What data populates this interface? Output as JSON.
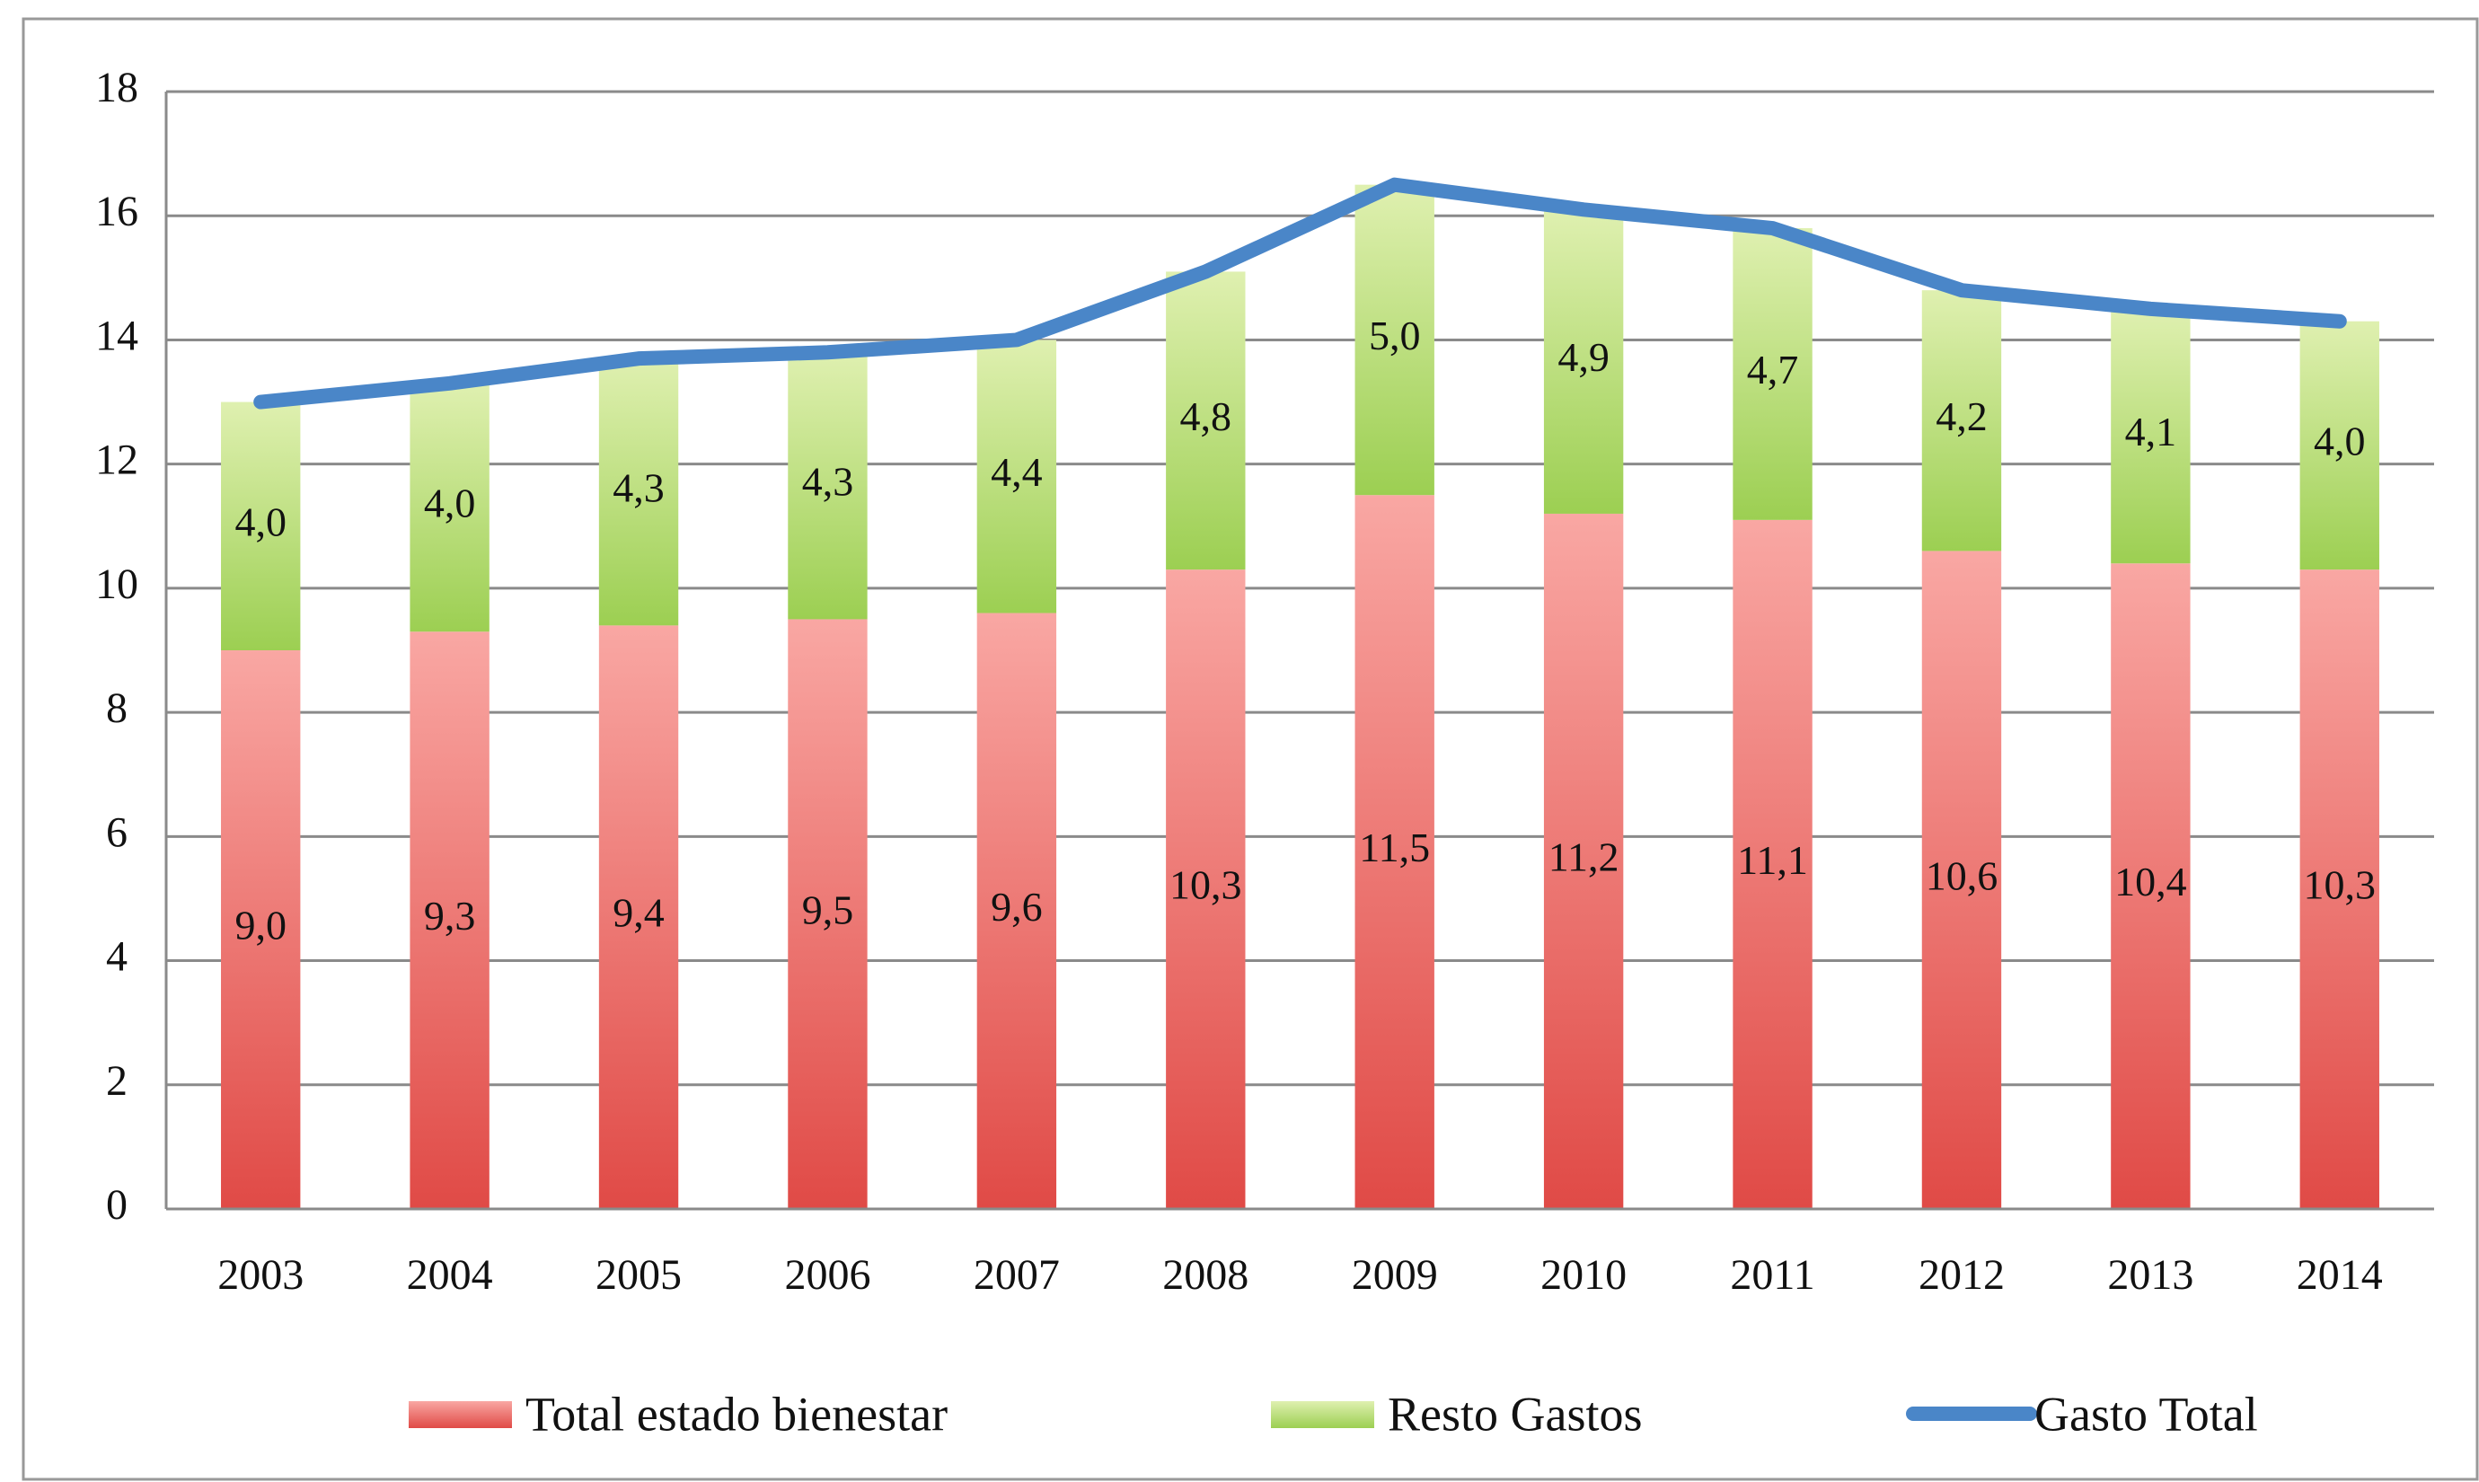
{
  "chart_data": {
    "type": "bar",
    "stacked": true,
    "categories": [
      "2003",
      "2004",
      "2005",
      "2006",
      "2007",
      "2008",
      "2009",
      "2010",
      "2011",
      "2012",
      "2013",
      "2014"
    ],
    "series": [
      {
        "name": "Total estado bienestar",
        "color": "#e8504f",
        "values": [
          9.0,
          9.3,
          9.4,
          9.5,
          9.6,
          10.3,
          11.5,
          11.2,
          11.1,
          10.6,
          10.4,
          10.3
        ],
        "value_labels": [
          "9,0",
          "9,3",
          "9,4",
          "9,5",
          "9,6",
          "10,3",
          "11,5",
          "11,2",
          "11,1",
          "10,6",
          "10,4",
          "10,3"
        ]
      },
      {
        "name": "Resto Gastos",
        "color": "#a8d860",
        "values": [
          4.0,
          4.0,
          4.3,
          4.3,
          4.4,
          4.8,
          5.0,
          4.9,
          4.7,
          4.2,
          4.1,
          4.0
        ],
        "value_labels": [
          "4,0",
          "4,0",
          "4,3",
          "4,3",
          "4,4",
          "4,8",
          "5,0",
          "4,9",
          "4,7",
          "4,2",
          "4,1",
          "4,0"
        ]
      },
      {
        "name": "Gasto Total",
        "color": "#4a86c8",
        "type": "line",
        "values": [
          13.0,
          13.3,
          13.7,
          13.8,
          14.0,
          15.1,
          16.5,
          16.1,
          15.8,
          14.8,
          14.5,
          14.3
        ]
      }
    ],
    "ylim": [
      0,
      18
    ],
    "yticks": [
      0,
      2,
      4,
      6,
      8,
      10,
      12,
      14,
      16,
      18
    ],
    "grid": true,
    "legend": "bottom"
  }
}
